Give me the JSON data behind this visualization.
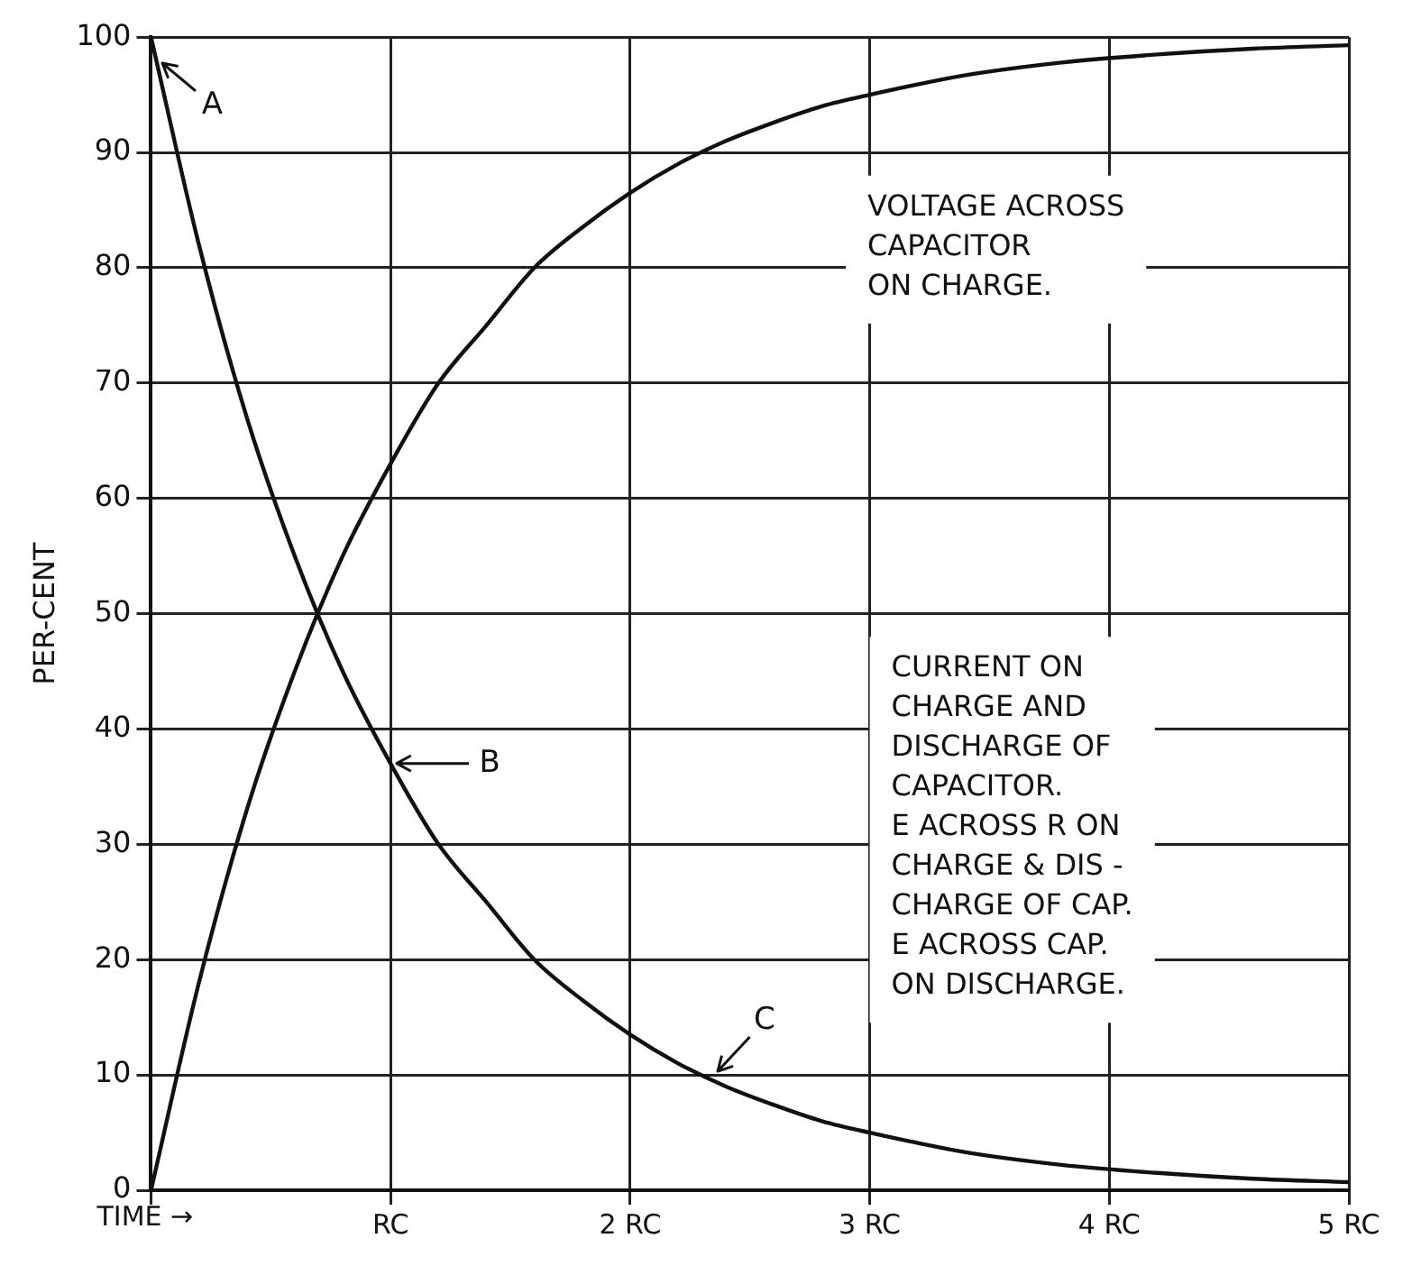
{
  "chart_data": {
    "type": "line",
    "ylabel": "PER-CENT",
    "xlabel": "TIME →",
    "grid": true,
    "legend": false,
    "marker": "none",
    "line_style": "solid",
    "xlim": [
      0,
      5
    ],
    "xticks": [
      {
        "value": 0,
        "label": null
      },
      {
        "value": 1,
        "label": "RC"
      },
      {
        "value": 2,
        "label": "2 RC"
      },
      {
        "value": 3,
        "label": "3 RC"
      },
      {
        "value": 4,
        "label": "4 RC"
      },
      {
        "value": 5,
        "label": "5 RC"
      }
    ],
    "ylim": [
      0,
      100
    ],
    "yticks": [
      0,
      10,
      20,
      30,
      40,
      50,
      60,
      70,
      80,
      90,
      100
    ],
    "x": [
      0,
      0.2,
      0.4,
      0.6,
      0.8,
      1.0,
      1.2,
      1.4,
      1.6,
      1.8,
      2.0,
      2.2,
      2.4,
      2.6,
      2.8,
      3.0,
      3.4,
      3.8,
      4.2,
      4.6,
      5.0
    ],
    "series": [
      {
        "color": "#111111",
        "values": [
          0,
          18,
          33,
          45,
          55,
          63,
          70,
          75,
          80,
          83.5,
          86.5,
          89,
          91,
          92.6,
          94,
          95,
          96.7,
          97.8,
          98.5,
          99,
          99.3
        ]
      },
      {
        "color": "#111111",
        "values": [
          100,
          82,
          67,
          55,
          45,
          37,
          30,
          25,
          20,
          16.5,
          13.5,
          11,
          9,
          7.4,
          6,
          5,
          3.3,
          2.2,
          1.5,
          1,
          0.7
        ]
      }
    ],
    "annotations": [
      {
        "text": "A",
        "x": 0.03,
        "y": 98
      },
      {
        "text": "B",
        "x": 1.0,
        "y": 37
      },
      {
        "text": "C",
        "x": 2.35,
        "y": 10
      },
      "VOLTAGE ACROSS\nCAPACITOR\nON CHARGE.",
      "CURRENT ON\nCHARGE AND\nDISCHARGE OF\nCAPACITOR.\nE ACROSS R ON\nCHARGE & DIS -\nCHARGE OF CAP.\nE ACROSS CAP.\nON DISCHARGE."
    ]
  }
}
